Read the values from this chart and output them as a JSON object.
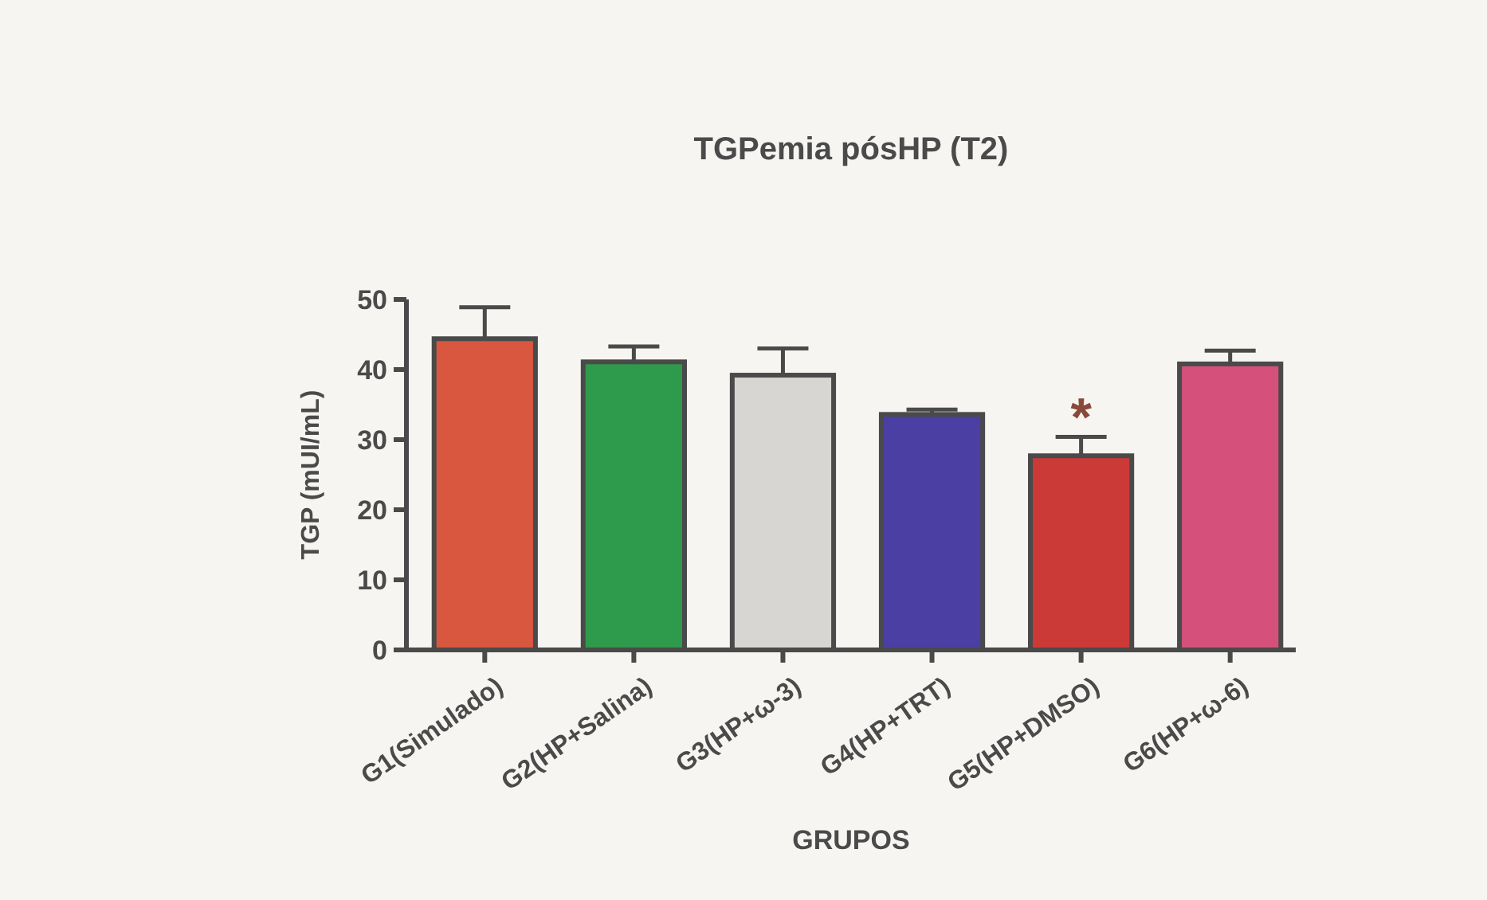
{
  "chart_data": {
    "type": "bar",
    "title": "TGPemia pósHP (T2)",
    "xlabel": "GRUPOS",
    "ylabel": "TGP (mUI/mL)",
    "categories": [
      "G1(Simulado)",
      "G2(HP+Salina)",
      "G3(HP+ω-3)",
      "G4(HP+TRT)",
      "G5(HP+DMSO)",
      "G6(HP+ω-6)"
    ],
    "values": [
      44.4,
      41.1,
      39.2,
      33.6,
      27.7,
      40.8
    ],
    "errors": [
      [
        44.4,
        48.9
      ],
      [
        41.1,
        43.3
      ],
      [
        39.2,
        43.0
      ],
      [
        33.6,
        34.3
      ],
      [
        27.7,
        30.4
      ],
      [
        40.8,
        42.7
      ]
    ],
    "colors": [
      "#d9573f",
      "#2e9a4c",
      "#d8d6d2",
      "#4b3fa3",
      "#cc3a38",
      "#d6507c"
    ],
    "ylim": [
      0,
      50
    ],
    "yticks": [
      0,
      10,
      20,
      30,
      40,
      50
    ],
    "grid": false,
    "annotations": [
      "*"
    ]
  }
}
